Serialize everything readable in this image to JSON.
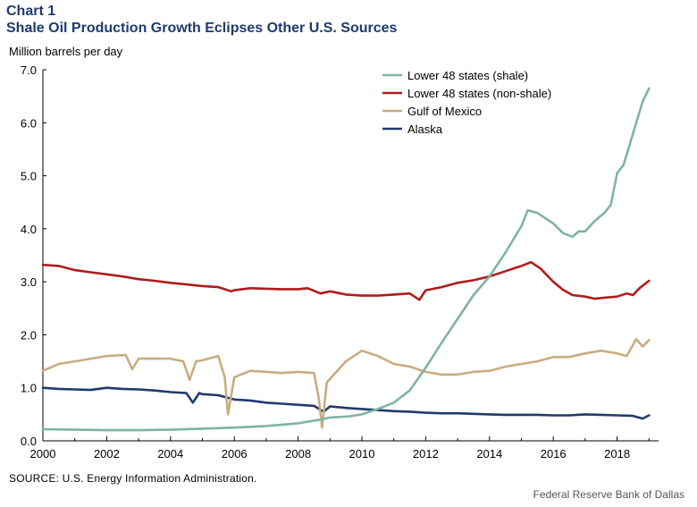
{
  "header": {
    "chart_number": "Chart 1",
    "title": "Shale Oil Production Growth Eclipses Other U.S. Sources"
  },
  "source": "SOURCE: U.S. Energy Information Administration.",
  "credit": "Federal Reserve Bank of Dallas",
  "chart_data": {
    "type": "line",
    "title": "Shale Oil Production Growth Eclipses Other U.S. Sources",
    "xlabel": "",
    "ylabel": "Million barrels per day",
    "xlim": [
      2000,
      2019.3
    ],
    "ylim": [
      0,
      7
    ],
    "x_ticks": [
      2000,
      2002,
      2004,
      2006,
      2008,
      2010,
      2012,
      2014,
      2016,
      2018
    ],
    "x_tick_labels": [
      "2000",
      "2002",
      "2004",
      "2006",
      "2008",
      "2010",
      "2012",
      "2014",
      "2016",
      "2018"
    ],
    "y_ticks": [
      0,
      1,
      2,
      3,
      4,
      5,
      6,
      7
    ],
    "y_tick_labels": [
      "0.0",
      "1.0",
      "2.0",
      "3.0",
      "4.0",
      "5.0",
      "6.0",
      "7.0"
    ],
    "grid": false,
    "legend_position": "top-right",
    "series": [
      {
        "name": "Lower 48  states (shale)",
        "color": "#7fb3a7",
        "points": [
          [
            2000,
            0.22
          ],
          [
            2001,
            0.21
          ],
          [
            2002,
            0.2
          ],
          [
            2003,
            0.2
          ],
          [
            2004,
            0.21
          ],
          [
            2005,
            0.23
          ],
          [
            2006,
            0.25
          ],
          [
            2007,
            0.28
          ],
          [
            2008,
            0.33
          ],
          [
            2008.7,
            0.4
          ],
          [
            2009,
            0.44
          ],
          [
            2009.6,
            0.46
          ],
          [
            2010,
            0.5
          ],
          [
            2010.5,
            0.6
          ],
          [
            2011,
            0.72
          ],
          [
            2011.5,
            0.95
          ],
          [
            2012,
            1.38
          ],
          [
            2012.5,
            1.85
          ],
          [
            2013,
            2.3
          ],
          [
            2013.5,
            2.75
          ],
          [
            2014,
            3.1
          ],
          [
            2014.5,
            3.55
          ],
          [
            2015,
            4.05
          ],
          [
            2015.2,
            4.35
          ],
          [
            2015.5,
            4.3
          ],
          [
            2016,
            4.1
          ],
          [
            2016.3,
            3.92
          ],
          [
            2016.6,
            3.85
          ],
          [
            2016.8,
            3.95
          ],
          [
            2017,
            3.95
          ],
          [
            2017.3,
            4.15
          ],
          [
            2017.6,
            4.3
          ],
          [
            2017.8,
            4.45
          ],
          [
            2018,
            5.05
          ],
          [
            2018.2,
            5.2
          ],
          [
            2018.4,
            5.6
          ],
          [
            2018.6,
            6.0
          ],
          [
            2018.8,
            6.4
          ],
          [
            2019,
            6.65
          ]
        ]
      },
      {
        "name": "Lower 48 states (non-shale)",
        "color": "#b01c1c",
        "points": [
          [
            2000,
            3.32
          ],
          [
            2000.5,
            3.3
          ],
          [
            2001,
            3.22
          ],
          [
            2001.5,
            3.18
          ],
          [
            2002,
            3.14
          ],
          [
            2002.5,
            3.1
          ],
          [
            2003,
            3.05
          ],
          [
            2003.5,
            3.02
          ],
          [
            2004,
            2.98
          ],
          [
            2004.5,
            2.95
          ],
          [
            2005,
            2.92
          ],
          [
            2005.5,
            2.9
          ],
          [
            2005.7,
            2.86
          ],
          [
            2005.9,
            2.82
          ],
          [
            2006,
            2.84
          ],
          [
            2006.5,
            2.88
          ],
          [
            2007,
            2.87
          ],
          [
            2007.5,
            2.86
          ],
          [
            2008,
            2.86
          ],
          [
            2008.3,
            2.88
          ],
          [
            2008.7,
            2.78
          ],
          [
            2009,
            2.82
          ],
          [
            2009.5,
            2.76
          ],
          [
            2010,
            2.74
          ],
          [
            2010.5,
            2.74
          ],
          [
            2011,
            2.76
          ],
          [
            2011.5,
            2.78
          ],
          [
            2011.8,
            2.66
          ],
          [
            2012,
            2.84
          ],
          [
            2012.5,
            2.9
          ],
          [
            2013,
            2.98
          ],
          [
            2013.5,
            3.03
          ],
          [
            2014,
            3.1
          ],
          [
            2014.5,
            3.2
          ],
          [
            2015,
            3.3
          ],
          [
            2015.3,
            3.37
          ],
          [
            2015.6,
            3.25
          ],
          [
            2016,
            3.0
          ],
          [
            2016.3,
            2.85
          ],
          [
            2016.6,
            2.75
          ],
          [
            2017,
            2.72
          ],
          [
            2017.3,
            2.68
          ],
          [
            2017.6,
            2.7
          ],
          [
            2018,
            2.72
          ],
          [
            2018.3,
            2.78
          ],
          [
            2018.5,
            2.75
          ],
          [
            2018.7,
            2.88
          ],
          [
            2019,
            3.02
          ]
        ]
      },
      {
        "name": "Gulf of Mexico",
        "color": "#c8ad7f",
        "points": [
          [
            2000,
            1.32
          ],
          [
            2000.5,
            1.45
          ],
          [
            2001,
            1.5
          ],
          [
            2001.5,
            1.55
          ],
          [
            2002,
            1.6
          ],
          [
            2002.6,
            1.62
          ],
          [
            2002.8,
            1.35
          ],
          [
            2003,
            1.55
          ],
          [
            2003.5,
            1.55
          ],
          [
            2004,
            1.55
          ],
          [
            2004.4,
            1.5
          ],
          [
            2004.6,
            1.15
          ],
          [
            2004.8,
            1.5
          ],
          [
            2005,
            1.52
          ],
          [
            2005.5,
            1.6
          ],
          [
            2005.7,
            1.2
          ],
          [
            2005.8,
            0.5
          ],
          [
            2006,
            1.2
          ],
          [
            2006.5,
            1.32
          ],
          [
            2007,
            1.3
          ],
          [
            2007.5,
            1.28
          ],
          [
            2008,
            1.3
          ],
          [
            2008.5,
            1.28
          ],
          [
            2008.65,
            0.8
          ],
          [
            2008.75,
            0.25
          ],
          [
            2008.9,
            1.1
          ],
          [
            2009.5,
            1.5
          ],
          [
            2010,
            1.7
          ],
          [
            2010.5,
            1.6
          ],
          [
            2011,
            1.45
          ],
          [
            2011.5,
            1.4
          ],
          [
            2012,
            1.3
          ],
          [
            2012.5,
            1.25
          ],
          [
            2013,
            1.25
          ],
          [
            2013.5,
            1.3
          ],
          [
            2014,
            1.32
          ],
          [
            2014.5,
            1.4
          ],
          [
            2015,
            1.45
          ],
          [
            2015.5,
            1.5
          ],
          [
            2016,
            1.58
          ],
          [
            2016.5,
            1.58
          ],
          [
            2017,
            1.65
          ],
          [
            2017.5,
            1.7
          ],
          [
            2018,
            1.65
          ],
          [
            2018.3,
            1.6
          ],
          [
            2018.6,
            1.92
          ],
          [
            2018.8,
            1.78
          ],
          [
            2019,
            1.9
          ]
        ]
      },
      {
        "name": "Alaska",
        "color": "#1f3a6e",
        "points": [
          [
            2000,
            1.0
          ],
          [
            2000.5,
            0.98
          ],
          [
            2001,
            0.97
          ],
          [
            2001.5,
            0.96
          ],
          [
            2002,
            1.0
          ],
          [
            2002.5,
            0.98
          ],
          [
            2003,
            0.97
          ],
          [
            2003.5,
            0.95
          ],
          [
            2004,
            0.92
          ],
          [
            2004.5,
            0.9
          ],
          [
            2004.7,
            0.72
          ],
          [
            2004.9,
            0.9
          ],
          [
            2005,
            0.88
          ],
          [
            2005.5,
            0.86
          ],
          [
            2006,
            0.78
          ],
          [
            2006.5,
            0.76
          ],
          [
            2007,
            0.72
          ],
          [
            2007.5,
            0.7
          ],
          [
            2008,
            0.68
          ],
          [
            2008.5,
            0.66
          ],
          [
            2008.8,
            0.55
          ],
          [
            2009,
            0.65
          ],
          [
            2009.5,
            0.62
          ],
          [
            2010,
            0.6
          ],
          [
            2010.5,
            0.58
          ],
          [
            2011,
            0.56
          ],
          [
            2011.5,
            0.55
          ],
          [
            2012,
            0.53
          ],
          [
            2012.5,
            0.52
          ],
          [
            2013,
            0.52
          ],
          [
            2013.5,
            0.51
          ],
          [
            2014,
            0.5
          ],
          [
            2014.5,
            0.49
          ],
          [
            2015,
            0.49
          ],
          [
            2015.5,
            0.49
          ],
          [
            2016,
            0.48
          ],
          [
            2016.5,
            0.48
          ],
          [
            2017,
            0.5
          ],
          [
            2017.5,
            0.49
          ],
          [
            2018,
            0.48
          ],
          [
            2018.5,
            0.47
          ],
          [
            2018.8,
            0.42
          ],
          [
            2019,
            0.48
          ]
        ]
      }
    ]
  }
}
